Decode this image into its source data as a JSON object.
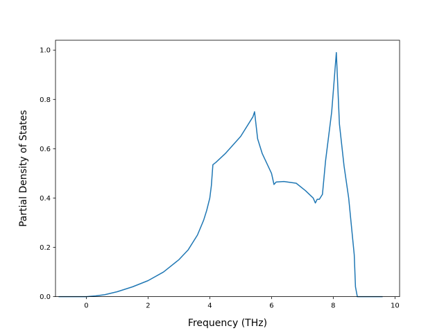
{
  "chart_data": {
    "type": "line",
    "title": "",
    "xlabel": "Frequency (THz)",
    "ylabel": "Partial Density of States",
    "xlim": [
      -1.0,
      10.15
    ],
    "ylim": [
      0.0,
      1.04
    ],
    "xticks": [
      0,
      2,
      4,
      6,
      8,
      10
    ],
    "yticks": [
      0.0,
      0.2,
      0.4,
      0.6,
      0.8,
      1.0
    ],
    "grid": false,
    "legend": "none",
    "series": [
      {
        "color": "#1f77b4",
        "x": [
          -0.9,
          -0.5,
          0.0,
          0.3,
          0.6,
          1.0,
          1.5,
          2.0,
          2.5,
          3.0,
          3.3,
          3.6,
          3.8,
          3.9,
          4.0,
          4.05,
          4.1,
          4.2,
          4.5,
          5.0,
          5.4,
          5.45,
          5.55,
          5.7,
          6.0,
          6.08,
          6.15,
          6.4,
          6.8,
          7.1,
          7.35,
          7.42,
          7.48,
          7.55,
          7.65,
          7.75,
          7.95,
          8.1,
          8.2,
          8.35,
          8.5,
          8.68,
          8.72,
          8.78,
          9.0,
          9.6
        ],
        "y": [
          0.0,
          0.0,
          0.0,
          0.003,
          0.008,
          0.02,
          0.04,
          0.065,
          0.1,
          0.15,
          0.19,
          0.25,
          0.31,
          0.35,
          0.4,
          0.45,
          0.535,
          0.545,
          0.58,
          0.65,
          0.73,
          0.75,
          0.64,
          0.58,
          0.5,
          0.455,
          0.465,
          0.467,
          0.46,
          0.43,
          0.4,
          0.38,
          0.395,
          0.395,
          0.415,
          0.55,
          0.75,
          0.99,
          0.7,
          0.53,
          0.4,
          0.17,
          0.04,
          0.0,
          0.0,
          0.0
        ]
      }
    ]
  }
}
